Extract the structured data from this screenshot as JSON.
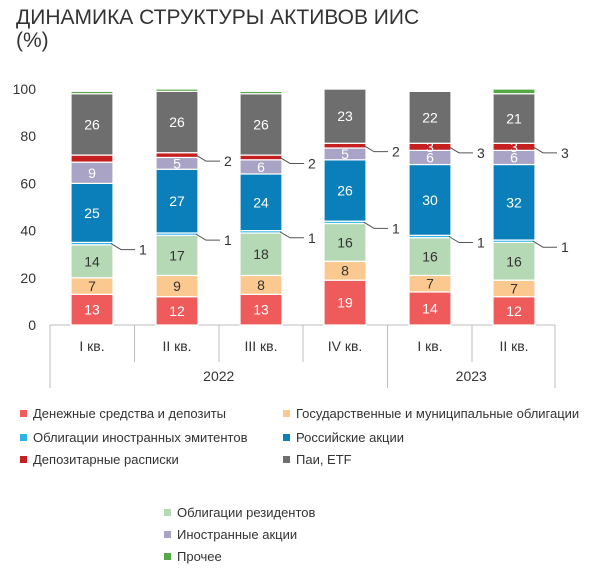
{
  "title_line1": "ДИНАМИКА СТРУКТУРЫ АКТИВОВ ИИС",
  "title_line2": "(%)",
  "chart_data": {
    "type": "bar",
    "stacked": true,
    "title": "ДИНАМИКА СТРУКТУРЫ АКТИВОВ ИИС",
    "subtitle": "(%)",
    "ylim": [
      0,
      100
    ],
    "yticks": [
      0,
      20,
      40,
      60,
      80,
      100
    ],
    "grid": false,
    "legend_position": "bottom",
    "categories": [
      "I кв.",
      "II кв.",
      "III кв.",
      "IV кв.",
      "I кв.",
      "II кв."
    ],
    "year_groups": [
      {
        "label": "2022",
        "start": 0,
        "end": 3
      },
      {
        "label": "2023",
        "start": 4,
        "end": 5
      }
    ],
    "series": [
      {
        "name": "Денежные средства и депозиты",
        "color": "#ef5a5b",
        "values": [
          13,
          12,
          13,
          19,
          14,
          12
        ]
      },
      {
        "name": "Государственные и муниципальные облигации",
        "color": "#fbc98f",
        "values": [
          7,
          9,
          8,
          8,
          7,
          7
        ]
      },
      {
        "name": "Облигации резидентов",
        "color": "#b5d9b5",
        "values": [
          14,
          17,
          18,
          16,
          16,
          16
        ]
      },
      {
        "name": "Облигации иностранных эмитентов",
        "color": "#2fb3e6",
        "values": [
          1,
          1,
          1,
          1,
          1,
          1
        ]
      },
      {
        "name": "Российские акции",
        "color": "#0a7fb9",
        "values": [
          25,
          27,
          24,
          26,
          30,
          32
        ]
      },
      {
        "name": "Иностранные акции",
        "color": "#a9a3c6",
        "values": [
          9,
          5,
          6,
          5,
          6,
          6
        ]
      },
      {
        "name": "Депозитарные расписки",
        "color": "#c51f1f",
        "values": [
          3,
          2,
          2,
          2,
          3,
          3
        ]
      },
      {
        "name": "Паи, ETF",
        "color": "#6e6e6e",
        "values": [
          26,
          26,
          26,
          23,
          22,
          21
        ]
      },
      {
        "name": "Прочее",
        "color": "#56a746",
        "values": [
          1,
          1,
          1,
          0.5,
          0.5,
          2
        ]
      }
    ],
    "data_labels": {
      "Денежные средства и депозиты": [
        "13",
        "12",
        "13",
        "19",
        "14",
        "12"
      ],
      "Государственные и муниципальные облигации": [
        "7",
        "9",
        "8",
        "8",
        "7",
        "7"
      ],
      "Облигации резидентов": [
        "14",
        "17",
        "18",
        "16",
        "16",
        "16"
      ],
      "Облигации иностранных эмитентов": [
        "1",
        "1",
        "1",
        "1",
        "1",
        "1"
      ],
      "Российские акции": [
        "25",
        "27",
        "24",
        "26",
        "30",
        "32"
      ],
      "Иностранные акции": [
        "9",
        "5",
        "6",
        "5",
        "6",
        "6"
      ],
      "Депозитарные расписки": [
        "",
        "2",
        "2",
        "2",
        "3",
        "3"
      ],
      "Паи, ETF": [
        "26",
        "26",
        "26",
        "23",
        "22",
        "21"
      ]
    }
  }
}
